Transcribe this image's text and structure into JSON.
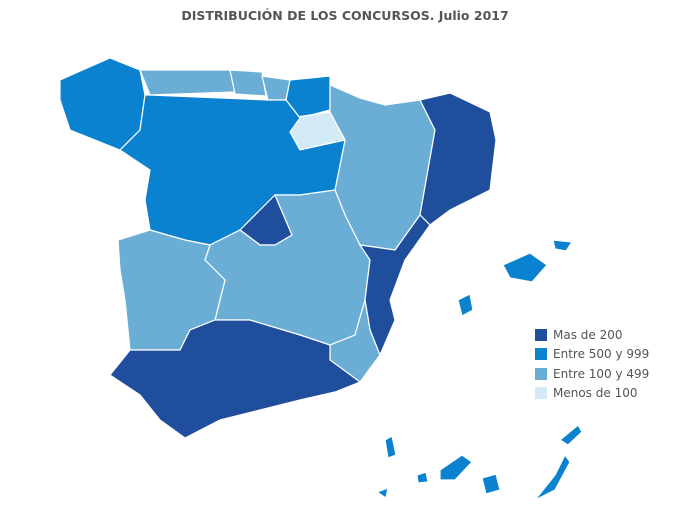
{
  "title": "DISTRIBUCIÓN DE LOS CONCURSOS. Julio 2017",
  "legend": [
    {
      "label": "Mas de 200",
      "color": "#1f4e9c"
    },
    {
      "label": "Entre 500 y 999",
      "color": "#0a82d0"
    },
    {
      "label": "Entre 100 y 499",
      "color": "#6aaed6"
    },
    {
      "label": "Menos de 100",
      "color": "#d2ebf7"
    }
  ]
}
